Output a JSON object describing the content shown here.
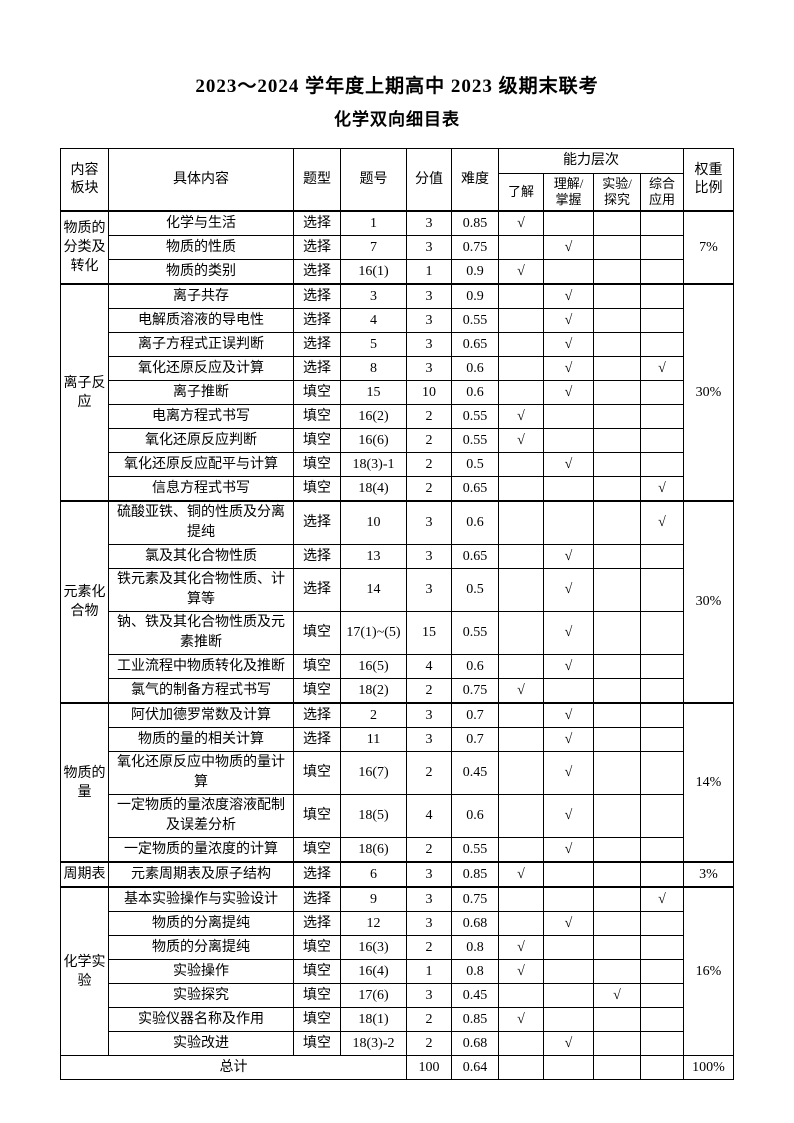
{
  "page": {
    "title_line1": "2023～2024 学年度上期高中 2023 级期末联考",
    "title_line2": "化学双向细目表"
  },
  "table": {
    "headers": {
      "content_block": [
        "内容",
        "板块"
      ],
      "specific_content": "具体内容",
      "question_type": "题型",
      "question_number": "题号",
      "score": "分值",
      "difficulty": "难度",
      "ability_group": "能力层次",
      "ability_columns": [
        [
          "了解"
        ],
        [
          "理解/",
          "掌握"
        ],
        [
          "实验/",
          "探究"
        ],
        [
          "综合",
          "应用"
        ]
      ],
      "weight": [
        "权重",
        "比例"
      ]
    },
    "check_mark": "√",
    "sections": [
      {
        "block": "物质的分类及转化",
        "weight": "7%",
        "rows": [
          {
            "topic": "化学与生活",
            "type": "选择",
            "number": "1",
            "score": "3",
            "difficulty": "0.85",
            "abilities": [
              1,
              0,
              0,
              0
            ]
          },
          {
            "topic": "物质的性质",
            "type": "选择",
            "number": "7",
            "score": "3",
            "difficulty": "0.75",
            "abilities": [
              0,
              1,
              0,
              0
            ]
          },
          {
            "topic": "物质的类别",
            "type": "选择",
            "number": "16(1)",
            "score": "1",
            "difficulty": "0.9",
            "abilities": [
              1,
              0,
              0,
              0
            ]
          }
        ]
      },
      {
        "block": "离子反应",
        "weight": "30%",
        "rows": [
          {
            "topic": "离子共存",
            "type": "选择",
            "number": "3",
            "score": "3",
            "difficulty": "0.9",
            "abilities": [
              0,
              1,
              0,
              0
            ]
          },
          {
            "topic": "电解质溶液的导电性",
            "type": "选择",
            "number": "4",
            "score": "3",
            "difficulty": "0.55",
            "abilities": [
              0,
              1,
              0,
              0
            ]
          },
          {
            "topic": "离子方程式正误判断",
            "type": "选择",
            "number": "5",
            "score": "3",
            "difficulty": "0.65",
            "abilities": [
              0,
              1,
              0,
              0
            ]
          },
          {
            "topic": "氧化还原反应及计算",
            "type": "选择",
            "number": "8",
            "score": "3",
            "difficulty": "0.6",
            "abilities": [
              0,
              1,
              0,
              1
            ]
          },
          {
            "topic": "离子推断",
            "type": "填空",
            "number": "15",
            "score": "10",
            "difficulty": "0.6",
            "abilities": [
              0,
              1,
              0,
              0
            ]
          },
          {
            "topic": "电离方程式书写",
            "type": "填空",
            "number": "16(2)",
            "score": "2",
            "difficulty": "0.55",
            "abilities": [
              1,
              0,
              0,
              0
            ]
          },
          {
            "topic": "氧化还原反应判断",
            "type": "填空",
            "number": "16(6)",
            "score": "2",
            "difficulty": "0.55",
            "abilities": [
              1,
              0,
              0,
              0
            ]
          },
          {
            "topic": "氧化还原反应配平与计算",
            "type": "填空",
            "number": "18(3)-1",
            "score": "2",
            "difficulty": "0.5",
            "abilities": [
              0,
              1,
              0,
              0
            ]
          },
          {
            "topic": "信息方程式书写",
            "type": "填空",
            "number": "18(4)",
            "score": "2",
            "difficulty": "0.65",
            "abilities": [
              0,
              0,
              0,
              1
            ]
          }
        ]
      },
      {
        "block": "元素化合物",
        "weight": "30%",
        "rows": [
          {
            "topic": "硫酸亚铁、铜的性质及分离提纯",
            "type": "选择",
            "number": "10",
            "score": "3",
            "difficulty": "0.6",
            "abilities": [
              0,
              0,
              0,
              1
            ]
          },
          {
            "topic": "氯及其化合物性质",
            "type": "选择",
            "number": "13",
            "score": "3",
            "difficulty": "0.65",
            "abilities": [
              0,
              1,
              0,
              0
            ]
          },
          {
            "topic": "铁元素及其化合物性质、计算等",
            "type": "选择",
            "number": "14",
            "score": "3",
            "difficulty": "0.5",
            "abilities": [
              0,
              1,
              0,
              0
            ]
          },
          {
            "topic": "钠、铁及其化合物性质及元素推断",
            "type": "填空",
            "number": "17(1)~(5)",
            "score": "15",
            "difficulty": "0.55",
            "abilities": [
              0,
              1,
              0,
              0
            ]
          },
          {
            "topic": "工业流程中物质转化及推断",
            "type": "填空",
            "number": "16(5)",
            "score": "4",
            "difficulty": "0.6",
            "abilities": [
              0,
              1,
              0,
              0
            ]
          },
          {
            "topic": "氯气的制备方程式书写",
            "type": "填空",
            "number": "18(2)",
            "score": "2",
            "difficulty": "0.75",
            "abilities": [
              1,
              0,
              0,
              0
            ]
          }
        ]
      },
      {
        "block": "物质的量",
        "weight": "14%",
        "rows": [
          {
            "topic": "阿伏加德罗常数及计算",
            "type": "选择",
            "number": "2",
            "score": "3",
            "difficulty": "0.7",
            "abilities": [
              0,
              1,
              0,
              0
            ]
          },
          {
            "topic": "物质的量的相关计算",
            "type": "选择",
            "number": "11",
            "score": "3",
            "difficulty": "0.7",
            "abilities": [
              0,
              1,
              0,
              0
            ]
          },
          {
            "topic": "氧化还原反应中物质的量计算",
            "type": "填空",
            "number": "16(7)",
            "score": "2",
            "difficulty": "0.45",
            "abilities": [
              0,
              1,
              0,
              0
            ]
          },
          {
            "topic": "一定物质的量浓度溶液配制及误差分析",
            "type": "填空",
            "number": "18(5)",
            "score": "4",
            "difficulty": "0.6",
            "abilities": [
              0,
              1,
              0,
              0
            ]
          },
          {
            "topic": "一定物质的量浓度的计算",
            "type": "填空",
            "number": "18(6)",
            "score": "2",
            "difficulty": "0.55",
            "abilities": [
              0,
              1,
              0,
              0
            ]
          }
        ]
      },
      {
        "block": "周期表",
        "weight": "3%",
        "rows": [
          {
            "topic": "元素周期表及原子结构",
            "type": "选择",
            "number": "6",
            "score": "3",
            "difficulty": "0.85",
            "abilities": [
              1,
              0,
              0,
              0
            ]
          }
        ]
      },
      {
        "block": "化学实验",
        "weight": "16%",
        "rows": [
          {
            "topic": "基本实验操作与实验设计",
            "type": "选择",
            "number": "9",
            "score": "3",
            "difficulty": "0.75",
            "abilities": [
              0,
              0,
              0,
              1
            ]
          },
          {
            "topic": "物质的分离提纯",
            "type": "选择",
            "number": "12",
            "score": "3",
            "difficulty": "0.68",
            "abilities": [
              0,
              1,
              0,
              0
            ]
          },
          {
            "topic": "物质的分离提纯",
            "type": "填空",
            "number": "16(3)",
            "score": "2",
            "difficulty": "0.8",
            "abilities": [
              1,
              0,
              0,
              0
            ]
          },
          {
            "topic": "实验操作",
            "type": "填空",
            "number": "16(4)",
            "score": "1",
            "difficulty": "0.8",
            "abilities": [
              1,
              0,
              0,
              0
            ]
          },
          {
            "topic": "实验探究",
            "type": "填空",
            "number": "17(6)",
            "score": "3",
            "difficulty": "0.45",
            "abilities": [
              0,
              0,
              1,
              0
            ]
          },
          {
            "topic": "实验仪器名称及作用",
            "type": "填空",
            "number": "18(1)",
            "score": "2",
            "difficulty": "0.85",
            "abilities": [
              1,
              0,
              0,
              0
            ]
          },
          {
            "topic": "实验改进",
            "type": "填空",
            "number": "18(3)-2",
            "score": "2",
            "difficulty": "0.68",
            "abilities": [
              0,
              1,
              0,
              0
            ]
          }
        ]
      }
    ],
    "total_row": {
      "label": "总计",
      "score": "100",
      "difficulty": "0.64",
      "weight": "100%"
    }
  }
}
